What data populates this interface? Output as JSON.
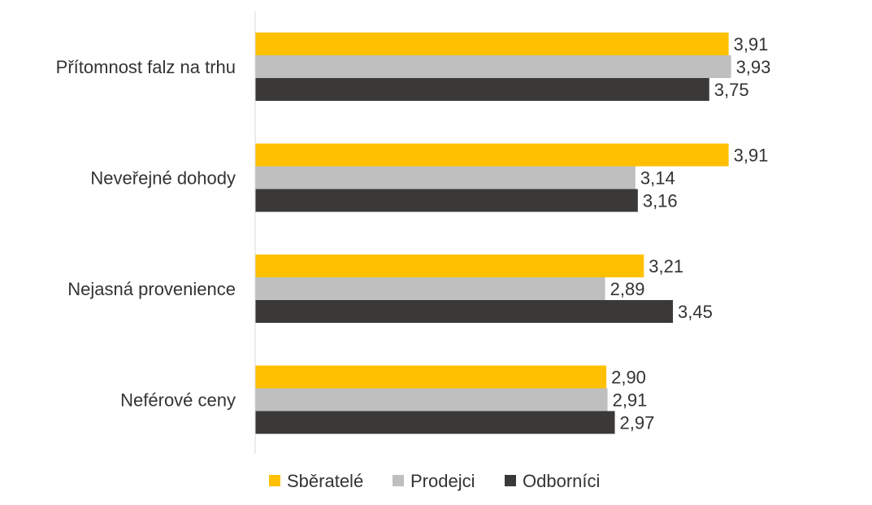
{
  "chart_data": {
    "type": "bar",
    "orientation": "horizontal",
    "categories": [
      "Přítomnost falz na trhu",
      "Neveřejné dohody",
      "Nejasná provenience",
      "Neférové ceny"
    ],
    "series": [
      {
        "name": "Sběratelé",
        "color": "#FFC000",
        "values": [
          3.91,
          3.91,
          3.21,
          2.9
        ],
        "labels": [
          "3,91",
          "3,91",
          "3,21",
          "2,90"
        ]
      },
      {
        "name": "Prodejci",
        "color": "#BFBFBF",
        "values": [
          3.93,
          3.14,
          2.89,
          2.91
        ],
        "labels": [
          "3,93",
          "3,14",
          "2,89",
          "2,91"
        ]
      },
      {
        "name": "Odborníci",
        "color": "#3A3938",
        "values": [
          3.75,
          3.16,
          3.45,
          2.97
        ],
        "labels": [
          "3,75",
          "3,16",
          "3,45",
          "2,97"
        ]
      }
    ],
    "xlim": [
      0,
      4
    ],
    "grid": false,
    "legend_position": "bottom"
  }
}
